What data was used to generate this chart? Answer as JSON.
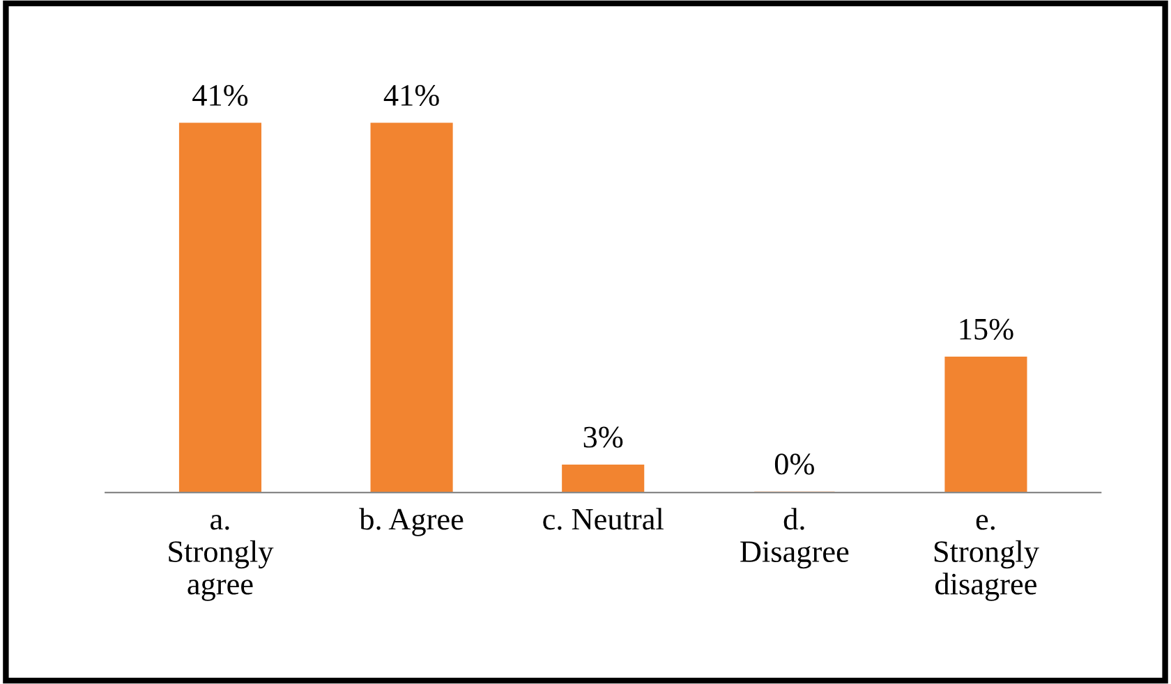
{
  "chart_data": {
    "type": "bar",
    "categories": [
      "a.\nStrongly\nagree",
      "b. Agree",
      "c. Neutral",
      "d.\nDisagree",
      "e.\nStrongly\ndisagree"
    ],
    "values": [
      41,
      41,
      3,
      0,
      15
    ],
    "value_labels": [
      "41%",
      "41%",
      "3%",
      "0%",
      "15%"
    ],
    "color": "#f28430",
    "grid": false
  }
}
